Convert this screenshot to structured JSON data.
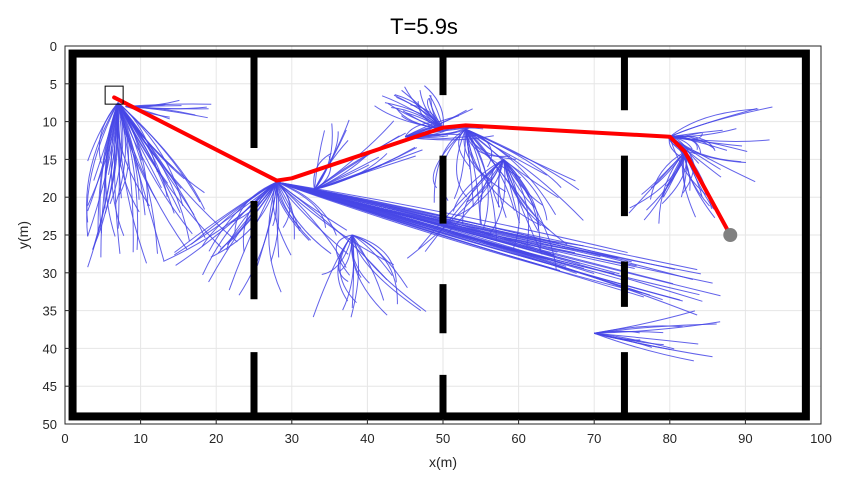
{
  "chart_data": {
    "type": "line",
    "title": "T=5.9s",
    "xlabel": "x(m)",
    "ylabel": "y(m)",
    "xlim": [
      0,
      100
    ],
    "ylim": [
      0,
      50
    ],
    "y_axis_reversed": true,
    "grid": true,
    "x_ticks": [
      "0",
      "10",
      "20",
      "30",
      "40",
      "50",
      "60",
      "70",
      "80",
      "90",
      "100"
    ],
    "y_ticks": [
      "0",
      "5",
      "10",
      "15",
      "20",
      "25",
      "30",
      "35",
      "40",
      "45",
      "50"
    ],
    "boundary": {
      "x": [
        1,
        98
      ],
      "y": [
        1,
        49
      ]
    },
    "walls": [
      {
        "x": 25,
        "segments": [
          [
            1,
            13.5
          ],
          [
            20.5,
            33.5
          ],
          [
            40.5,
            49
          ]
        ]
      },
      {
        "x": 50,
        "segments": [
          [
            1,
            6.5
          ],
          [
            14.5,
            23.5
          ],
          [
            31.5,
            38
          ],
          [
            43.5,
            49
          ]
        ]
      },
      {
        "x": 74,
        "segments": [
          [
            1,
            8.5
          ],
          [
            14.5,
            22.5
          ],
          [
            28.5,
            34.5
          ],
          [
            40.5,
            49
          ]
        ]
      }
    ],
    "start": {
      "x": 6.5,
      "y": 6.5
    },
    "goal": {
      "x": 88,
      "y": 25
    },
    "path": {
      "x": [
        6.5,
        28,
        30,
        50,
        53,
        80,
        82,
        88
      ],
      "y": [
        6.8,
        17.8,
        17.5,
        10.8,
        10.5,
        12,
        14,
        25
      ]
    },
    "colors": {
      "tree": "#4646e6",
      "path": "#ff0000",
      "walls": "#000000",
      "goal": "#808080",
      "grid": "#e6e6e6"
    }
  }
}
